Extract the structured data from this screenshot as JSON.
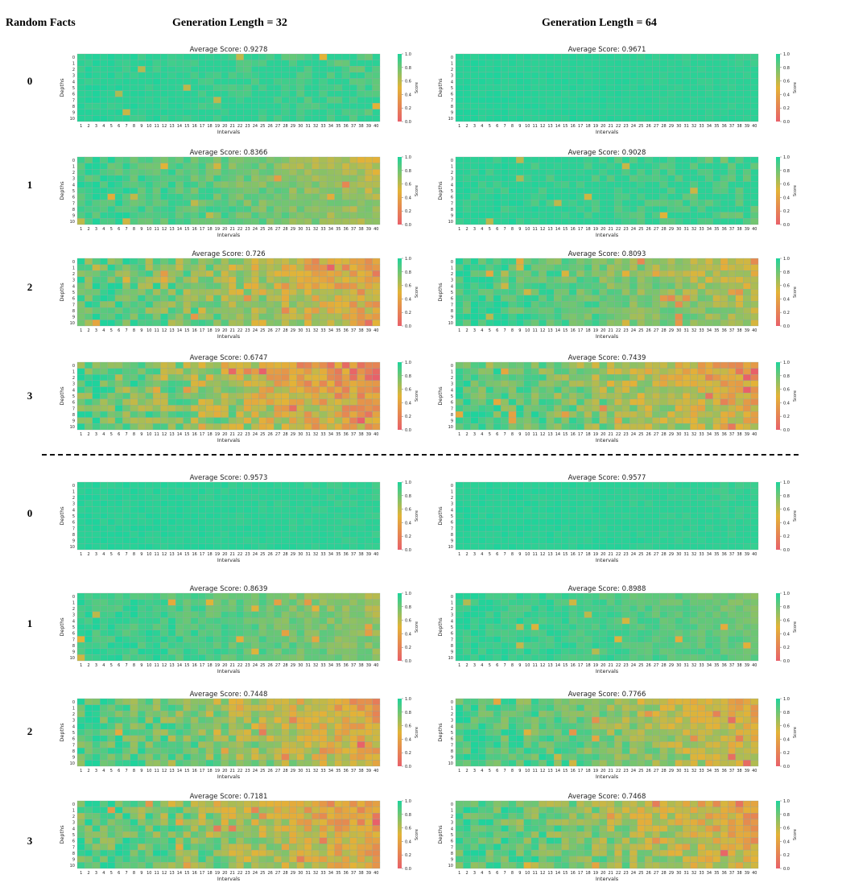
{
  "header": {
    "left_label": "Random Facts",
    "col_titles": [
      "Generation Length = 32",
      "Generation Length = 64"
    ]
  },
  "row_labels": [
    "0",
    "1",
    "2",
    "3",
    "0",
    "1",
    "2",
    "3"
  ],
  "colors": {
    "low": "#e8606a",
    "mid": "#e3b337",
    "high": "#1fd39c",
    "grid": "#8aa89a"
  },
  "chart_data": [
    {
      "type": "heatmap",
      "section": 1,
      "row": "0",
      "gen_length": 32,
      "title": "Average Score: 0.9278",
      "xlabel": "Intervals",
      "ylabel": "Depths",
      "colorbar_label": "Score",
      "vmin": 0,
      "vmax": 1,
      "x_ticks": [
        "1",
        "2",
        "3",
        "4",
        "5",
        "6",
        "7",
        "8",
        "9",
        "10",
        "11",
        "12",
        "13",
        "14",
        "15",
        "16",
        "17",
        "18",
        "19",
        "20",
        "21",
        "22",
        "23",
        "24",
        "25",
        "26",
        "27",
        "28",
        "29",
        "30",
        "31",
        "32",
        "33",
        "34",
        "35",
        "36",
        "37",
        "38",
        "39",
        "40"
      ],
      "y_ticks": [
        "0",
        "1",
        "2",
        "3",
        "4",
        "5",
        "6",
        "7",
        "8",
        "9",
        "10"
      ],
      "colorbar_ticks": [
        "0.0",
        "0.2",
        "0.4",
        "0.6",
        "0.8",
        "1.0"
      ],
      "average": 0.9278,
      "weak_region": [
        1.0,
        0.85
      ]
    },
    {
      "type": "heatmap",
      "section": 1,
      "row": "0",
      "gen_length": 64,
      "title": "Average Score: 0.9671",
      "xlabel": "Intervals",
      "ylabel": "Depths",
      "colorbar_label": "Score",
      "vmin": 0,
      "vmax": 1,
      "x_ticks": [
        "1",
        "2",
        "3",
        "4",
        "5",
        "6",
        "7",
        "8",
        "9",
        "10",
        "11",
        "12",
        "13",
        "14",
        "15",
        "16",
        "17",
        "18",
        "19",
        "20",
        "21",
        "22",
        "23",
        "24",
        "25",
        "26",
        "27",
        "28",
        "29",
        "30",
        "31",
        "32",
        "33",
        "34",
        "35",
        "36",
        "37",
        "38",
        "39",
        "40"
      ],
      "y_ticks": [
        "0",
        "1",
        "2",
        "3",
        "4",
        "5",
        "6",
        "7",
        "8",
        "9",
        "10"
      ],
      "colorbar_ticks": [
        "0.0",
        "0.2",
        "0.4",
        "0.6",
        "0.8",
        "1.0"
      ],
      "average": 0.9671,
      "weak_region": [
        0.6,
        0.8
      ]
    },
    {
      "type": "heatmap",
      "section": 1,
      "row": "1",
      "gen_length": 32,
      "title": "Average Score: 0.8366",
      "xlabel": "Intervals",
      "ylabel": "Depths",
      "colorbar_label": "Score",
      "vmin": 0,
      "vmax": 1,
      "x_ticks": [
        "1",
        "2",
        "3",
        "4",
        "5",
        "6",
        "7",
        "8",
        "9",
        "10",
        "11",
        "12",
        "13",
        "14",
        "15",
        "16",
        "17",
        "18",
        "19",
        "20",
        "21",
        "22",
        "23",
        "24",
        "25",
        "26",
        "27",
        "28",
        "29",
        "30",
        "31",
        "32",
        "33",
        "34",
        "35",
        "36",
        "37",
        "38",
        "39",
        "40"
      ],
      "y_ticks": [
        "0",
        "1",
        "2",
        "3",
        "4",
        "5",
        "6",
        "7",
        "8",
        "9",
        "10"
      ],
      "colorbar_ticks": [
        "0.0",
        "0.2",
        "0.4",
        "0.6",
        "0.8",
        "1.0"
      ],
      "average": 0.8366,
      "weak_region": [
        1.0,
        0.9
      ]
    },
    {
      "type": "heatmap",
      "section": 1,
      "row": "1",
      "gen_length": 64,
      "title": "Average Score: 0.9028",
      "xlabel": "Intervals",
      "ylabel": "Depths",
      "colorbar_label": "Score",
      "vmin": 0,
      "vmax": 1,
      "x_ticks": [
        "1",
        "2",
        "3",
        "4",
        "5",
        "6",
        "7",
        "8",
        "9",
        "10",
        "11",
        "12",
        "13",
        "14",
        "15",
        "16",
        "17",
        "18",
        "19",
        "20",
        "21",
        "22",
        "23",
        "24",
        "25",
        "26",
        "27",
        "28",
        "29",
        "30",
        "31",
        "32",
        "33",
        "34",
        "35",
        "36",
        "37",
        "38",
        "39",
        "40"
      ],
      "y_ticks": [
        "0",
        "1",
        "2",
        "3",
        "4",
        "5",
        "6",
        "7",
        "8",
        "9",
        "10"
      ],
      "colorbar_ticks": [
        "0.0",
        "0.2",
        "0.4",
        "0.6",
        "0.8",
        "1.0"
      ],
      "average": 0.9028,
      "weak_region": [
        0.8,
        0.85
      ]
    },
    {
      "type": "heatmap",
      "section": 1,
      "row": "2",
      "gen_length": 32,
      "title": "Average Score: 0.726",
      "xlabel": "Intervals",
      "ylabel": "Depths",
      "colorbar_label": "Score",
      "vmin": 0,
      "vmax": 1,
      "x_ticks": [
        "1",
        "2",
        "3",
        "4",
        "5",
        "6",
        "7",
        "8",
        "9",
        "10",
        "11",
        "12",
        "13",
        "14",
        "15",
        "16",
        "17",
        "18",
        "19",
        "20",
        "21",
        "22",
        "23",
        "24",
        "25",
        "26",
        "27",
        "28",
        "29",
        "30",
        "31",
        "32",
        "33",
        "34",
        "35",
        "36",
        "37",
        "38",
        "39",
        "40"
      ],
      "y_ticks": [
        "0",
        "1",
        "2",
        "3",
        "4",
        "5",
        "6",
        "7",
        "8",
        "9",
        "10"
      ],
      "colorbar_ticks": [
        "0.0",
        "0.2",
        "0.4",
        "0.6",
        "0.8",
        "1.0"
      ],
      "average": 0.726,
      "weak_region": [
        1.0,
        0.95
      ]
    },
    {
      "type": "heatmap",
      "section": 1,
      "row": "2",
      "gen_length": 64,
      "title": "Average Score: 0.8093",
      "xlabel": "Intervals",
      "ylabel": "Depths",
      "colorbar_label": "Score",
      "vmin": 0,
      "vmax": 1,
      "x_ticks": [
        "1",
        "2",
        "3",
        "4",
        "5",
        "6",
        "7",
        "8",
        "9",
        "10",
        "11",
        "12",
        "13",
        "14",
        "15",
        "16",
        "17",
        "18",
        "19",
        "20",
        "21",
        "22",
        "23",
        "24",
        "25",
        "26",
        "27",
        "28",
        "29",
        "30",
        "31",
        "32",
        "33",
        "34",
        "35",
        "36",
        "37",
        "38",
        "39",
        "40"
      ],
      "y_ticks": [
        "0",
        "1",
        "2",
        "3",
        "4",
        "5",
        "6",
        "7",
        "8",
        "9",
        "10"
      ],
      "colorbar_ticks": [
        "0.0",
        "0.2",
        "0.4",
        "0.6",
        "0.8",
        "1.0"
      ],
      "average": 0.8093,
      "weak_region": [
        0.9,
        0.95
      ]
    },
    {
      "type": "heatmap",
      "section": 1,
      "row": "3",
      "gen_length": 32,
      "title": "Average Score: 0.6747",
      "xlabel": "Intervals",
      "ylabel": "Depths",
      "colorbar_label": "Score",
      "vmin": 0,
      "vmax": 1,
      "x_ticks": [
        "1",
        "2",
        "3",
        "4",
        "5",
        "6",
        "7",
        "8",
        "9",
        "10",
        "11",
        "12",
        "13",
        "14",
        "15",
        "16",
        "17",
        "18",
        "19",
        "20",
        "21",
        "22",
        "23",
        "24",
        "25",
        "26",
        "27",
        "28",
        "29",
        "30",
        "31",
        "32",
        "33",
        "34",
        "35",
        "36",
        "37",
        "38",
        "39",
        "40"
      ],
      "y_ticks": [
        "0",
        "1",
        "2",
        "3",
        "4",
        "5",
        "6",
        "7",
        "8",
        "9",
        "10"
      ],
      "colorbar_ticks": [
        "0.0",
        "0.2",
        "0.4",
        "0.6",
        "0.8",
        "1.0"
      ],
      "average": 0.6747,
      "weak_region": [
        1.0,
        1.0
      ]
    },
    {
      "type": "heatmap",
      "section": 1,
      "row": "3",
      "gen_length": 64,
      "title": "Average Score: 0.7439",
      "xlabel": "Intervals",
      "ylabel": "Depths",
      "colorbar_label": "Score",
      "vmin": 0,
      "vmax": 1,
      "x_ticks": [
        "1",
        "2",
        "3",
        "4",
        "5",
        "6",
        "7",
        "8",
        "9",
        "10",
        "11",
        "12",
        "13",
        "14",
        "15",
        "16",
        "17",
        "18",
        "19",
        "20",
        "21",
        "22",
        "23",
        "24",
        "25",
        "26",
        "27",
        "28",
        "29",
        "30",
        "31",
        "32",
        "33",
        "34",
        "35",
        "36",
        "37",
        "38",
        "39",
        "40"
      ],
      "y_ticks": [
        "0",
        "1",
        "2",
        "3",
        "4",
        "5",
        "6",
        "7",
        "8",
        "9",
        "10"
      ],
      "colorbar_ticks": [
        "0.0",
        "0.2",
        "0.4",
        "0.6",
        "0.8",
        "1.0"
      ],
      "average": 0.7439,
      "weak_region": [
        1.0,
        1.0
      ]
    },
    {
      "type": "heatmap",
      "section": 2,
      "row": "0",
      "gen_length": 32,
      "title": "Average Score: 0.9573",
      "xlabel": "Intervals",
      "ylabel": "Depths",
      "colorbar_label": "Score",
      "vmin": 0,
      "vmax": 1,
      "x_ticks": [
        "1",
        "2",
        "3",
        "4",
        "5",
        "6",
        "7",
        "8",
        "9",
        "10",
        "11",
        "12",
        "13",
        "14",
        "15",
        "16",
        "17",
        "18",
        "19",
        "20",
        "21",
        "22",
        "23",
        "24",
        "25",
        "26",
        "27",
        "28",
        "29",
        "30",
        "31",
        "32",
        "33",
        "34",
        "35",
        "36",
        "37",
        "38",
        "39",
        "40"
      ],
      "y_ticks": [
        "0",
        "1",
        "2",
        "3",
        "4",
        "5",
        "6",
        "7",
        "8",
        "9",
        "10"
      ],
      "colorbar_ticks": [
        "0.0",
        "0.2",
        "0.4",
        "0.6",
        "0.8",
        "1.0"
      ],
      "average": 0.9573,
      "weak_region": [
        0.5,
        0.6
      ]
    },
    {
      "type": "heatmap",
      "section": 2,
      "row": "0",
      "gen_length": 64,
      "title": "Average Score: 0.9577",
      "xlabel": "Intervals",
      "ylabel": "Depths",
      "colorbar_label": "Score",
      "vmin": 0,
      "vmax": 1,
      "x_ticks": [
        "1",
        "2",
        "3",
        "4",
        "5",
        "6",
        "7",
        "8",
        "9",
        "10",
        "11",
        "12",
        "13",
        "14",
        "15",
        "16",
        "17",
        "18",
        "19",
        "20",
        "21",
        "22",
        "23",
        "24",
        "25",
        "26",
        "27",
        "28",
        "29",
        "30",
        "31",
        "32",
        "33",
        "34",
        "35",
        "36",
        "37",
        "38",
        "39",
        "40"
      ],
      "y_ticks": [
        "0",
        "1",
        "2",
        "3",
        "4",
        "5",
        "6",
        "7",
        "8",
        "9",
        "10"
      ],
      "colorbar_ticks": [
        "0.0",
        "0.2",
        "0.4",
        "0.6",
        "0.8",
        "1.0"
      ],
      "average": 0.9577,
      "weak_region": [
        0.55,
        0.8
      ]
    },
    {
      "type": "heatmap",
      "section": 2,
      "row": "1",
      "gen_length": 32,
      "title": "Average Score: 0.8639",
      "xlabel": "Intervals",
      "ylabel": "Depths",
      "colorbar_label": "Score",
      "vmin": 0,
      "vmax": 1,
      "x_ticks": [
        "1",
        "2",
        "3",
        "4",
        "5",
        "6",
        "7",
        "8",
        "9",
        "10",
        "11",
        "12",
        "13",
        "14",
        "15",
        "16",
        "17",
        "18",
        "19",
        "20",
        "21",
        "22",
        "23",
        "24",
        "25",
        "26",
        "27",
        "28",
        "29",
        "30",
        "31",
        "32",
        "33",
        "34",
        "35",
        "36",
        "37",
        "38",
        "39",
        "40"
      ],
      "y_ticks": [
        "0",
        "1",
        "2",
        "3",
        "4",
        "5",
        "6",
        "7",
        "8",
        "9",
        "10"
      ],
      "colorbar_ticks": [
        "0.0",
        "0.2",
        "0.4",
        "0.6",
        "0.8",
        "1.0"
      ],
      "average": 0.8639,
      "weak_region": [
        0.9,
        1.0
      ]
    },
    {
      "type": "heatmap",
      "section": 2,
      "row": "1",
      "gen_length": 64,
      "title": "Average Score: 0.8988",
      "xlabel": "Intervals",
      "ylabel": "Depths",
      "colorbar_label": "Score",
      "vmin": 0,
      "vmax": 1,
      "x_ticks": [
        "1",
        "2",
        "3",
        "4",
        "5",
        "6",
        "7",
        "8",
        "9",
        "10",
        "11",
        "12",
        "13",
        "14",
        "15",
        "16",
        "17",
        "18",
        "19",
        "20",
        "21",
        "22",
        "23",
        "24",
        "25",
        "26",
        "27",
        "28",
        "29",
        "30",
        "31",
        "32",
        "33",
        "34",
        "35",
        "36",
        "37",
        "38",
        "39",
        "40"
      ],
      "y_ticks": [
        "0",
        "1",
        "2",
        "3",
        "4",
        "5",
        "6",
        "7",
        "8",
        "9",
        "10"
      ],
      "colorbar_ticks": [
        "0.0",
        "0.2",
        "0.4",
        "0.6",
        "0.8",
        "1.0"
      ],
      "average": 0.8988,
      "weak_region": [
        0.8,
        1.0
      ]
    },
    {
      "type": "heatmap",
      "section": 2,
      "row": "2",
      "gen_length": 32,
      "title": "Average Score: 0.7448",
      "xlabel": "Intervals",
      "ylabel": "Depths",
      "colorbar_label": "Score",
      "vmin": 0,
      "vmax": 1,
      "x_ticks": [
        "1",
        "2",
        "3",
        "4",
        "5",
        "6",
        "7",
        "8",
        "9",
        "10",
        "11",
        "12",
        "13",
        "14",
        "15",
        "16",
        "17",
        "18",
        "19",
        "20",
        "21",
        "22",
        "23",
        "24",
        "25",
        "26",
        "27",
        "28",
        "29",
        "30",
        "31",
        "32",
        "33",
        "34",
        "35",
        "36",
        "37",
        "38",
        "39",
        "40"
      ],
      "y_ticks": [
        "0",
        "1",
        "2",
        "3",
        "4",
        "5",
        "6",
        "7",
        "8",
        "9",
        "10"
      ],
      "colorbar_ticks": [
        "0.0",
        "0.2",
        "0.4",
        "0.6",
        "0.8",
        "1.0"
      ],
      "average": 0.7448,
      "weak_region": [
        1.0,
        1.0
      ]
    },
    {
      "type": "heatmap",
      "section": 2,
      "row": "2",
      "gen_length": 64,
      "title": "Average Score: 0.7766",
      "xlabel": "Intervals",
      "ylabel": "Depths",
      "colorbar_label": "Score",
      "vmin": 0,
      "vmax": 1,
      "x_ticks": [
        "1",
        "2",
        "3",
        "4",
        "5",
        "6",
        "7",
        "8",
        "9",
        "10",
        "11",
        "12",
        "13",
        "14",
        "15",
        "16",
        "17",
        "18",
        "19",
        "20",
        "21",
        "22",
        "23",
        "24",
        "25",
        "26",
        "27",
        "28",
        "29",
        "30",
        "31",
        "32",
        "33",
        "34",
        "35",
        "36",
        "37",
        "38",
        "39",
        "40"
      ],
      "y_ticks": [
        "0",
        "1",
        "2",
        "3",
        "4",
        "5",
        "6",
        "7",
        "8",
        "9",
        "10"
      ],
      "colorbar_ticks": [
        "0.0",
        "0.2",
        "0.4",
        "0.6",
        "0.8",
        "1.0"
      ],
      "average": 0.7766,
      "weak_region": [
        1.0,
        1.0
      ]
    },
    {
      "type": "heatmap",
      "section": 2,
      "row": "3",
      "gen_length": 32,
      "title": "Average Score: 0.7181",
      "xlabel": "Intervals",
      "ylabel": "Depths",
      "colorbar_label": "Score",
      "vmin": 0,
      "vmax": 1,
      "x_ticks": [
        "1",
        "2",
        "3",
        "4",
        "5",
        "6",
        "7",
        "8",
        "9",
        "10",
        "11",
        "12",
        "13",
        "14",
        "15",
        "16",
        "17",
        "18",
        "19",
        "20",
        "21",
        "22",
        "23",
        "24",
        "25",
        "26",
        "27",
        "28",
        "29",
        "30",
        "31",
        "32",
        "33",
        "34",
        "35",
        "36",
        "37",
        "38",
        "39",
        "40"
      ],
      "y_ticks": [
        "0",
        "1",
        "2",
        "3",
        "4",
        "5",
        "6",
        "7",
        "8",
        "9",
        "10"
      ],
      "colorbar_ticks": [
        "0.0",
        "0.2",
        "0.4",
        "0.6",
        "0.8",
        "1.0"
      ],
      "average": 0.7181,
      "weak_region": [
        1.0,
        1.0
      ]
    },
    {
      "type": "heatmap",
      "section": 2,
      "row": "3",
      "gen_length": 64,
      "title": "Average Score: 0.7468",
      "xlabel": "Intervals",
      "ylabel": "Depths",
      "colorbar_label": "Score",
      "vmin": 0,
      "vmax": 1,
      "x_ticks": [
        "1",
        "2",
        "3",
        "4",
        "5",
        "6",
        "7",
        "8",
        "9",
        "10",
        "11",
        "12",
        "13",
        "14",
        "15",
        "16",
        "17",
        "18",
        "19",
        "20",
        "21",
        "22",
        "23",
        "24",
        "25",
        "26",
        "27",
        "28",
        "29",
        "30",
        "31",
        "32",
        "33",
        "34",
        "35",
        "36",
        "37",
        "38",
        "39",
        "40"
      ],
      "y_ticks": [
        "0",
        "1",
        "2",
        "3",
        "4",
        "5",
        "6",
        "7",
        "8",
        "9",
        "10"
      ],
      "colorbar_ticks": [
        "0.0",
        "0.2",
        "0.4",
        "0.6",
        "0.8",
        "1.0"
      ],
      "average": 0.7468,
      "weak_region": [
        1.0,
        1.0
      ]
    }
  ]
}
